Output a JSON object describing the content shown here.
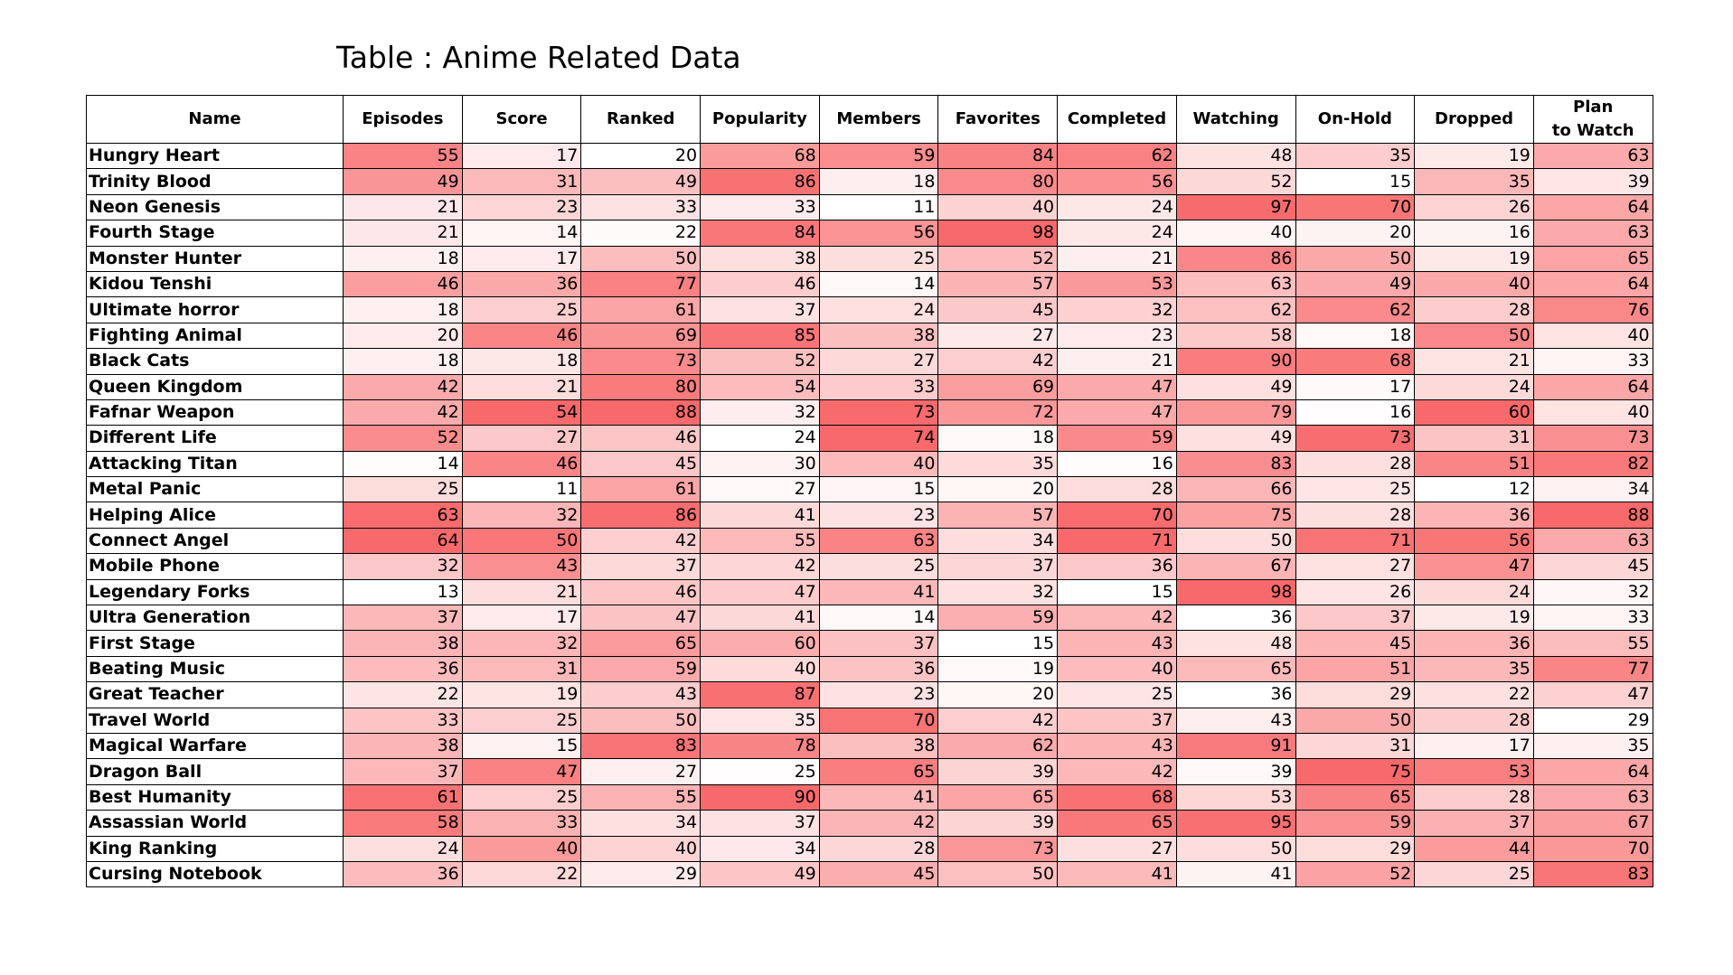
{
  "chart_data": {
    "type": "table",
    "title": "Table : Anime Related Data",
    "columns": [
      "Name",
      "Episodes",
      "Score",
      "Ranked",
      "Popularity",
      "Members",
      "Favorites",
      "Completed",
      "Watching",
      "On-Hold",
      "Dropped",
      "Plan\nto Watch"
    ],
    "rows": [
      {
        "name": "Hungry Heart",
        "values": [
          55,
          17,
          20,
          68,
          59,
          84,
          62,
          48,
          35,
          19,
          63
        ]
      },
      {
        "name": "Trinity Blood",
        "values": [
          49,
          31,
          49,
          86,
          18,
          80,
          56,
          52,
          15,
          35,
          39
        ]
      },
      {
        "name": "Neon Genesis",
        "values": [
          21,
          23,
          33,
          33,
          11,
          40,
          24,
          97,
          70,
          26,
          64
        ]
      },
      {
        "name": "Fourth Stage",
        "values": [
          21,
          14,
          22,
          84,
          56,
          98,
          24,
          40,
          20,
          16,
          63
        ]
      },
      {
        "name": "Monster Hunter",
        "values": [
          18,
          17,
          50,
          38,
          25,
          52,
          21,
          86,
          50,
          19,
          65
        ]
      },
      {
        "name": "Kidou Tenshi",
        "values": [
          46,
          36,
          77,
          46,
          14,
          57,
          53,
          63,
          49,
          40,
          64
        ]
      },
      {
        "name": "Ultimate horror",
        "values": [
          18,
          25,
          61,
          37,
          24,
          45,
          32,
          62,
          62,
          28,
          76
        ]
      },
      {
        "name": "Fighting Animal",
        "values": [
          20,
          46,
          69,
          85,
          38,
          27,
          23,
          58,
          18,
          50,
          40
        ]
      },
      {
        "name": "Black Cats",
        "values": [
          18,
          18,
          73,
          52,
          27,
          42,
          21,
          90,
          68,
          21,
          33
        ]
      },
      {
        "name": "Queen Kingdom",
        "values": [
          42,
          21,
          80,
          54,
          33,
          69,
          47,
          49,
          17,
          24,
          64
        ]
      },
      {
        "name": "Fafnar Weapon",
        "values": [
          42,
          54,
          88,
          32,
          73,
          72,
          47,
          79,
          16,
          60,
          40
        ]
      },
      {
        "name": "Different Life",
        "values": [
          52,
          27,
          46,
          24,
          74,
          18,
          59,
          49,
          73,
          31,
          73
        ]
      },
      {
        "name": "Attacking Titan",
        "values": [
          14,
          46,
          45,
          30,
          40,
          35,
          16,
          83,
          28,
          51,
          82
        ]
      },
      {
        "name": "Metal Panic",
        "values": [
          25,
          11,
          61,
          27,
          15,
          20,
          28,
          66,
          25,
          12,
          34
        ]
      },
      {
        "name": "Helping Alice",
        "values": [
          63,
          32,
          86,
          41,
          23,
          57,
          70,
          75,
          28,
          36,
          88
        ]
      },
      {
        "name": "Connect Angel",
        "values": [
          64,
          50,
          42,
          55,
          63,
          34,
          71,
          50,
          71,
          56,
          63
        ]
      },
      {
        "name": "Mobile Phone",
        "values": [
          32,
          43,
          37,
          42,
          25,
          37,
          36,
          67,
          27,
          47,
          45
        ]
      },
      {
        "name": "Legendary Forks",
        "values": [
          13,
          21,
          46,
          47,
          41,
          32,
          15,
          98,
          26,
          24,
          32
        ]
      },
      {
        "name": "Ultra Generation",
        "values": [
          37,
          17,
          47,
          41,
          14,
          59,
          42,
          36,
          37,
          19,
          33
        ]
      },
      {
        "name": "First Stage",
        "values": [
          38,
          32,
          65,
          60,
          37,
          15,
          43,
          48,
          45,
          36,
          55
        ]
      },
      {
        "name": "Beating Music",
        "values": [
          36,
          31,
          59,
          40,
          36,
          19,
          40,
          65,
          51,
          35,
          77
        ]
      },
      {
        "name": "Great Teacher",
        "values": [
          22,
          19,
          43,
          87,
          23,
          20,
          25,
          36,
          29,
          22,
          47
        ]
      },
      {
        "name": "Travel World",
        "values": [
          33,
          25,
          50,
          35,
          70,
          42,
          37,
          43,
          50,
          28,
          29
        ]
      },
      {
        "name": "Magical Warfare",
        "values": [
          38,
          15,
          83,
          78,
          38,
          62,
          43,
          91,
          31,
          17,
          35
        ]
      },
      {
        "name": "Dragon Ball",
        "values": [
          37,
          47,
          27,
          25,
          65,
          39,
          42,
          39,
          75,
          53,
          64
        ]
      },
      {
        "name": "Best Humanity",
        "values": [
          61,
          25,
          55,
          90,
          41,
          65,
          68,
          53,
          65,
          28,
          63
        ]
      },
      {
        "name": "Assassian World",
        "values": [
          58,
          33,
          34,
          37,
          42,
          39,
          65,
          95,
          59,
          37,
          67
        ]
      },
      {
        "name": "King Ranking",
        "values": [
          24,
          40,
          40,
          34,
          28,
          73,
          27,
          50,
          29,
          44,
          70
        ]
      },
      {
        "name": "Cursing Notebook",
        "values": [
          36,
          22,
          29,
          49,
          45,
          50,
          41,
          41,
          52,
          25,
          83
        ]
      }
    ],
    "color_scale": {
      "low": "#FFFFFF",
      "high": "#F8696B",
      "scope": "per-column"
    }
  }
}
